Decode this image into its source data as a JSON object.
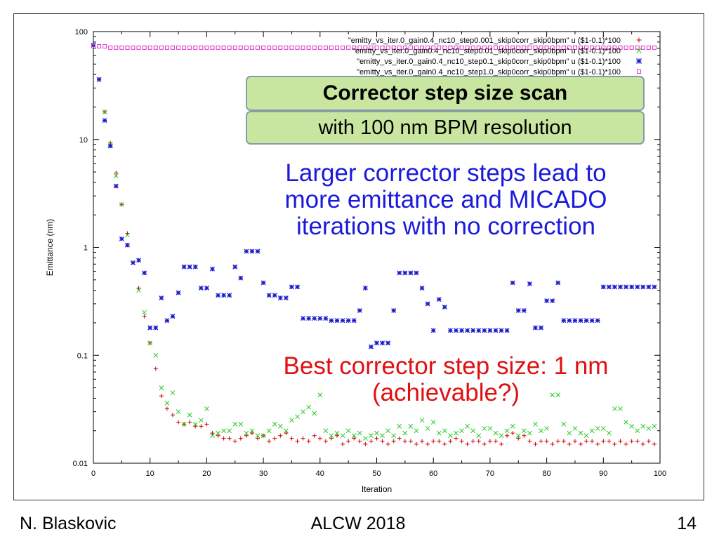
{
  "chart_data": {
    "type": "scatter",
    "xlabel": "Iteration",
    "ylabel": "Emittance (nm)",
    "xlim": [
      0,
      100
    ],
    "ylim": [
      0.01,
      100
    ],
    "yscale": "log",
    "grid": false,
    "legend_position": "top-right",
    "x_ticks": [
      "0",
      "10",
      "20",
      "30",
      "40",
      "50",
      "60",
      "70",
      "80",
      "90",
      "100"
    ],
    "y_ticks": [
      "0.01",
      "0.1",
      "1",
      "10",
      "100"
    ],
    "series": [
      {
        "name": "\"emitty_vs_iter.0_gain0.4_nc10_step0.001_skip0corr_skip0bpm\" u ($1-0.1)*100",
        "marker": "plus",
        "color": "#cc0000",
        "x": [
          0,
          1,
          2,
          3,
          4,
          5,
          6,
          7,
          8,
          9,
          10,
          11,
          12,
          13,
          14,
          15,
          16,
          17,
          18,
          19,
          20,
          21,
          22,
          23,
          24,
          25,
          26,
          27,
          28,
          29,
          30,
          31,
          32,
          33,
          34,
          35,
          36,
          37,
          38,
          39,
          40,
          41,
          42,
          43,
          44,
          45,
          46,
          47,
          48,
          49,
          50,
          51,
          52,
          53,
          54,
          55,
          56,
          57,
          58,
          59,
          60,
          61,
          62,
          63,
          64,
          65,
          66,
          67,
          68,
          69,
          70,
          71,
          72,
          73,
          74,
          75,
          76,
          77,
          78,
          79,
          80,
          81,
          82,
          83,
          84,
          85,
          86,
          87,
          88,
          89,
          90,
          91,
          92,
          93,
          94,
          95,
          96,
          97,
          98,
          99
        ],
        "y": [
          75,
          36,
          18,
          9.3,
          4.9,
          2.5,
          1.35,
          0.72,
          0.42,
          0.23,
          0.13,
          0.075,
          0.042,
          0.032,
          0.028,
          0.024,
          0.023,
          0.024,
          0.022,
          0.022,
          0.023,
          0.019,
          0.018,
          0.017,
          0.017,
          0.016,
          0.017,
          0.018,
          0.019,
          0.017,
          0.018,
          0.016,
          0.017,
          0.018,
          0.019,
          0.017,
          0.016,
          0.017,
          0.016,
          0.018,
          0.017,
          0.016,
          0.017,
          0.018,
          0.015,
          0.016,
          0.017,
          0.016,
          0.015,
          0.016,
          0.017,
          0.016,
          0.015,
          0.016,
          0.017,
          0.016,
          0.016,
          0.015,
          0.016,
          0.015,
          0.016,
          0.016,
          0.015,
          0.016,
          0.017,
          0.016,
          0.015,
          0.016,
          0.016,
          0.015,
          0.016,
          0.016,
          0.015,
          0.018,
          0.019,
          0.017,
          0.018,
          0.016,
          0.015,
          0.016,
          0.016,
          0.015,
          0.016,
          0.016,
          0.015,
          0.016,
          0.015,
          0.016,
          0.016,
          0.015,
          0.016,
          0.016,
          0.015,
          0.016,
          0.015,
          0.016,
          0.016,
          0.015,
          0.016,
          0.015
        ]
      },
      {
        "name": "\"emitty_vs_iter.0_gain0.4_nc10_step0.01_skip0corr_skip0bpm\" u ($1-0.1)*100",
        "marker": "cross",
        "color": "#22cc22",
        "x": [
          0,
          1,
          2,
          3,
          4,
          5,
          6,
          7,
          8,
          9,
          10,
          11,
          12,
          13,
          14,
          15,
          16,
          17,
          18,
          19,
          20,
          21,
          22,
          23,
          24,
          25,
          26,
          27,
          28,
          29,
          30,
          31,
          32,
          33,
          34,
          35,
          36,
          37,
          38,
          39,
          40,
          41,
          42,
          43,
          44,
          45,
          46,
          47,
          48,
          49,
          50,
          51,
          52,
          53,
          54,
          55,
          56,
          57,
          58,
          59,
          60,
          61,
          62,
          63,
          64,
          65,
          66,
          67,
          68,
          69,
          70,
          71,
          72,
          73,
          74,
          75,
          76,
          77,
          78,
          79,
          80,
          81,
          82,
          83,
          84,
          85,
          86,
          87,
          88,
          89,
          90,
          91,
          92,
          93,
          94,
          95,
          96,
          97,
          98,
          99
        ],
        "y": [
          75,
          36,
          18,
          9,
          4.6,
          2.5,
          1.3,
          0.72,
          0.4,
          0.25,
          0.13,
          0.1,
          0.05,
          0.036,
          0.045,
          0.03,
          0.023,
          0.028,
          0.023,
          0.025,
          0.032,
          0.018,
          0.019,
          0.02,
          0.02,
          0.023,
          0.023,
          0.019,
          0.02,
          0.018,
          0.018,
          0.02,
          0.023,
          0.022,
          0.02,
          0.025,
          0.027,
          0.03,
          0.033,
          0.029,
          0.043,
          0.02,
          0.018,
          0.019,
          0.018,
          0.02,
          0.018,
          0.019,
          0.017,
          0.018,
          0.019,
          0.018,
          0.02,
          0.018,
          0.022,
          0.019,
          0.022,
          0.02,
          0.025,
          0.021,
          0.024,
          0.019,
          0.02,
          0.018,
          0.019,
          0.02,
          0.022,
          0.02,
          0.018,
          0.021,
          0.021,
          0.019,
          0.018,
          0.02,
          0.022,
          0.018,
          0.02,
          0.019,
          0.023,
          0.02,
          0.021,
          0.043,
          0.043,
          0.023,
          0.019,
          0.021,
          0.019,
          0.018,
          0.02,
          0.021,
          0.021,
          0.019,
          0.032,
          0.032,
          0.024,
          0.022,
          0.02,
          0.022,
          0.021,
          0.022
        ]
      },
      {
        "name": "\"emitty_vs_iter.0_gain0.4_nc10_step0.1_skip0corr_skip0bpm\" u ($1-0.1)*100",
        "marker": "star",
        "color": "#1a1acc",
        "x": [
          0,
          1,
          2,
          3,
          4,
          5,
          6,
          7,
          8,
          9,
          10,
          11,
          12,
          13,
          14,
          15,
          16,
          17,
          18,
          19,
          20,
          21,
          22,
          23,
          24,
          25,
          26,
          27,
          28,
          29,
          30,
          31,
          32,
          33,
          34,
          35,
          36,
          37,
          38,
          39,
          40,
          41,
          42,
          43,
          44,
          45,
          46,
          47,
          48,
          49,
          50,
          51,
          52,
          53,
          54,
          55,
          56,
          57,
          58,
          59,
          60,
          61,
          62,
          63,
          64,
          65,
          66,
          67,
          68,
          69,
          70,
          71,
          72,
          73,
          74,
          75,
          76,
          77,
          78,
          79,
          80,
          81,
          82,
          83,
          84,
          85,
          86,
          87,
          88,
          89,
          90,
          91,
          92,
          93,
          94,
          95,
          96,
          97,
          98,
          99
        ],
        "y": [
          75,
          36,
          15,
          8.7,
          3.7,
          1.2,
          1.05,
          0.72,
          0.76,
          0.58,
          0.18,
          0.18,
          0.34,
          0.21,
          0.23,
          0.38,
          0.66,
          0.66,
          0.66,
          0.42,
          0.42,
          0.63,
          0.36,
          0.36,
          0.36,
          0.66,
          0.52,
          0.92,
          0.92,
          0.92,
          0.47,
          0.36,
          0.36,
          0.34,
          0.34,
          0.43,
          0.43,
          0.22,
          0.22,
          0.22,
          0.22,
          0.22,
          0.21,
          0.21,
          0.21,
          0.21,
          0.21,
          0.26,
          0.42,
          0.12,
          0.13,
          0.13,
          0.13,
          0.26,
          0.58,
          0.58,
          0.58,
          0.58,
          0.42,
          0.3,
          0.17,
          0.33,
          0.28,
          0.17,
          0.17,
          0.17,
          0.17,
          0.17,
          0.17,
          0.17,
          0.17,
          0.17,
          0.17,
          0.17,
          0.47,
          0.26,
          0.26,
          0.46,
          0.18,
          0.18,
          0.32,
          0.32,
          0.47,
          0.21,
          0.21,
          0.21,
          0.21,
          0.21,
          0.21,
          0.21,
          0.43,
          0.43,
          0.43,
          0.43,
          0.43,
          0.43,
          0.43,
          0.43,
          0.43,
          0.43
        ]
      },
      {
        "name": "\"emitty_vs_iter.0_gain0.4_nc10_step1.0_skip0corr_skip0bpm\" u ($1-0.1)*100",
        "marker": "square",
        "color": "#dd33cc",
        "x": [
          0,
          1,
          2,
          3,
          4,
          5,
          6,
          7,
          8,
          9,
          10,
          11,
          12,
          13,
          14,
          15,
          16,
          17,
          18,
          19,
          20,
          21,
          22,
          23,
          24,
          25,
          26,
          27,
          28,
          29,
          30,
          31,
          32,
          33,
          34,
          35,
          36,
          37,
          38,
          39,
          40,
          41,
          42,
          43,
          44,
          45,
          46,
          47,
          48,
          49,
          50,
          51,
          52,
          53,
          54,
          55,
          56,
          57,
          58,
          59,
          60,
          61,
          62,
          63,
          64,
          65,
          66,
          67,
          68,
          69,
          70,
          71,
          72,
          73,
          74,
          75,
          76,
          77,
          78,
          79,
          80,
          81,
          82,
          83,
          84,
          85,
          86,
          87,
          88,
          89,
          90,
          91,
          92,
          93,
          94,
          95,
          96,
          97,
          98,
          99
        ],
        "y": [
          73,
          73,
          73,
          71,
          71,
          71,
          71,
          71,
          71,
          71,
          71,
          71,
          71,
          71,
          71,
          71,
          71,
          71,
          71,
          71,
          71,
          71,
          71,
          71,
          71,
          71,
          71,
          71,
          71,
          71,
          71,
          71,
          71,
          71,
          71,
          71,
          71,
          71,
          71,
          71,
          71,
          71,
          71,
          71,
          71,
          71,
          71,
          71,
          71,
          71,
          71,
          71,
          71,
          71,
          71,
          71,
          71,
          71,
          71,
          71,
          71,
          71,
          71,
          71,
          71,
          71,
          71,
          71,
          71,
          71,
          71,
          71,
          71,
          71,
          71,
          71,
          71,
          71,
          71,
          71,
          71,
          71,
          71,
          71,
          71,
          71,
          71,
          71,
          71,
          71,
          71,
          71,
          71,
          71,
          71,
          71,
          71,
          71,
          71,
          71
        ]
      }
    ]
  },
  "callouts": {
    "title": "Corrector step size scan",
    "subtitle": "with 100 nm BPM resolution",
    "note_blue_lines": [
      "Larger corrector steps lead to",
      "more emittance and MICADO",
      "iterations with no correction"
    ],
    "note_red_lines": [
      "Best corrector step size: 1 nm",
      "(achievable?)"
    ]
  },
  "footer": {
    "author": "N. Blaskovic",
    "event": "ALCW 2018",
    "page": "14"
  }
}
